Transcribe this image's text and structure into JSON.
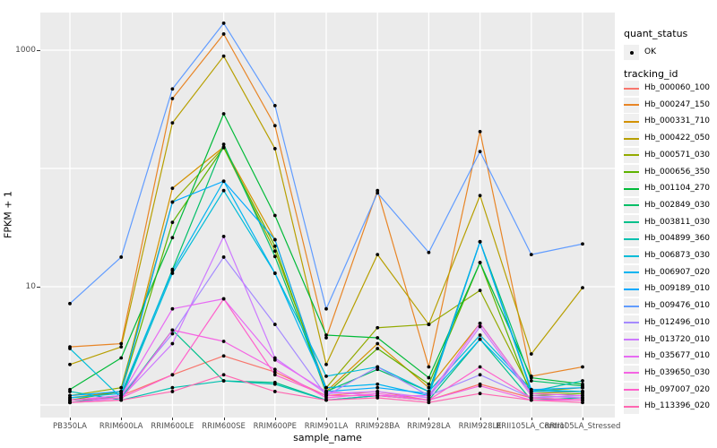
{
  "figure": {
    "y_axis_title": "FPKM + 1",
    "x_axis_title": "sample_name",
    "panel_background": "#EBEBEB",
    "gridline_color": "#FFFFFF",
    "tick_label_color": "#4D4D4D",
    "point_color": "#000000"
  },
  "legend": {
    "quant_title": "quant_status",
    "quant_items": [
      {
        "label": "OK",
        "marker": "black-dot"
      }
    ],
    "tracking_title": "tracking_id",
    "key_background": "#F0F0F0"
  },
  "chart_data": {
    "type": "line",
    "title": "",
    "xlabel": "sample_name",
    "ylabel": "FPKM + 1",
    "y_scale": "log10",
    "ylim": [
      0.8,
      2050
    ],
    "y_tick_labels": [
      "10",
      "1000"
    ],
    "y_tick_values": [
      10,
      1000
    ],
    "y_gridline_values": [
      1,
      10,
      100,
      1000
    ],
    "grid": "major-on, white on gray panel",
    "legend_position": "right",
    "point_marker": "small black dot at every observation (quant_status = OK)",
    "categories": [
      "PB350LA",
      "RRIM600LA",
      "RRIM600LE",
      "RRIM600SE",
      "RRIM600PE",
      "RRIM901LA",
      "RRIM928BA",
      "RRIM928LA",
      "RRIM928LE",
      "RRII105LA_Control",
      "RRII105LA_Stressed"
    ],
    "series": [
      {
        "name": "Hb_000060_100",
        "color": "#F8766D",
        "values": [
          1.1,
          1.2,
          1.8,
          2.6,
          1.9,
          1.2,
          1.3,
          1.1,
          1.5,
          1.15,
          1.1
        ]
      },
      {
        "name": "Hb_000247_150",
        "color": "#E88526",
        "values": [
          3.1,
          3.3,
          390,
          1370,
          230,
          3.7,
          65,
          2.1,
          205,
          1.75,
          2.1
        ]
      },
      {
        "name": "Hb_000331_710",
        "color": "#D39200",
        "values": [
          1.15,
          1.3,
          68,
          152,
          25,
          1.3,
          3.3,
          1.4,
          4.9,
          1.25,
          1.3
        ]
      },
      {
        "name": "Hb_000422_050",
        "color": "#B79F00",
        "values": [
          2.2,
          3.1,
          243,
          890,
          147,
          2.2,
          18.7,
          4.8,
          59,
          2.7,
          9.8
        ]
      },
      {
        "name": "Hb_000571_030",
        "color": "#93AA00",
        "values": [
          1.2,
          1.4,
          52,
          150,
          20,
          1.4,
          4.5,
          4.8,
          9.3,
          1.3,
          1.4
        ]
      },
      {
        "name": "Hb_000656_350",
        "color": "#5EB300",
        "values": [
          1.1,
          1.3,
          35,
          150,
          22,
          1.25,
          3.0,
          1.5,
          16,
          1.2,
          1.25
        ]
      },
      {
        "name": "Hb_001104_270",
        "color": "#00BA38",
        "values": [
          1.35,
          2.5,
          26,
          290,
          40,
          3.9,
          3.7,
          1.7,
          16,
          1.7,
          1.5
        ]
      },
      {
        "name": "Hb_002849_030",
        "color": "#00BE67",
        "values": [
          1.05,
          1.2,
          14,
          160,
          18,
          1.3,
          2.0,
          1.3,
          24,
          1.6,
          1.45
        ]
      },
      {
        "name": "Hb_003811_030",
        "color": "#00C08B",
        "values": [
          1.1,
          1.15,
          4.3,
          1.6,
          1.55,
          1.1,
          1.2,
          1.1,
          3.6,
          1.1,
          1.15
        ]
      },
      {
        "name": "Hb_004899_360",
        "color": "#00C0AF",
        "values": [
          1.3,
          1.1,
          1.4,
          1.6,
          1.5,
          1.1,
          1.2,
          1.2,
          24,
          1.3,
          1.6
        ]
      },
      {
        "name": "Hb_006873_030",
        "color": "#00BCD8",
        "values": [
          3.0,
          1.15,
          13,
          65,
          13,
          1.75,
          2.1,
          1.3,
          3.9,
          1.35,
          1.3
        ]
      },
      {
        "name": "Hb_006907_020",
        "color": "#00B4F0",
        "values": [
          1.15,
          1.25,
          13.7,
          78,
          13,
          1.4,
          1.5,
          1.2,
          3.6,
          1.3,
          1.3
        ]
      },
      {
        "name": "Hb_009189_010",
        "color": "#00A9FF",
        "values": [
          1.2,
          1.3,
          52,
          78,
          25,
          1.3,
          1.4,
          1.25,
          24,
          1.35,
          1.4
        ]
      },
      {
        "name": "Hb_009476_010",
        "color": "#619CFF",
        "values": [
          7.2,
          17.8,
          470,
          1690,
          340,
          6.5,
          62,
          19.5,
          139,
          18.7,
          23
        ]
      },
      {
        "name": "Hb_012496_010",
        "color": "#A58AFF",
        "values": [
          1.1,
          1.2,
          4.0,
          17.8,
          4.8,
          1.2,
          2.1,
          1.2,
          1.8,
          1.15,
          1.2
        ]
      },
      {
        "name": "Hb_013720_010",
        "color": "#CD79FF",
        "values": [
          1.05,
          1.15,
          3.3,
          26.6,
          2.5,
          1.25,
          1.3,
          1.15,
          4.6,
          1.2,
          1.15
        ]
      },
      {
        "name": "Hb_035677_010",
        "color": "#E76BF3",
        "values": [
          1.1,
          1.2,
          6.5,
          7.9,
          2.4,
          1.3,
          1.2,
          1.2,
          4.9,
          1.25,
          1.2
        ]
      },
      {
        "name": "Hb_039650_030",
        "color": "#F564E3",
        "values": [
          1.05,
          1.1,
          4.3,
          3.45,
          2.0,
          1.15,
          1.25,
          1.1,
          1.45,
          1.1,
          1.1
        ]
      },
      {
        "name": "Hb_097007_020",
        "color": "#FF61CC",
        "values": [
          1.1,
          1.15,
          1.8,
          7.9,
          1.8,
          1.2,
          1.2,
          1.1,
          2.1,
          1.15,
          1.1
        ]
      },
      {
        "name": "Hb_113396_020",
        "color": "#FF67B1",
        "values": [
          1.05,
          1.1,
          1.3,
          1.8,
          1.3,
          1.1,
          1.15,
          1.05,
          1.25,
          1.1,
          1.05
        ]
      }
    ]
  }
}
